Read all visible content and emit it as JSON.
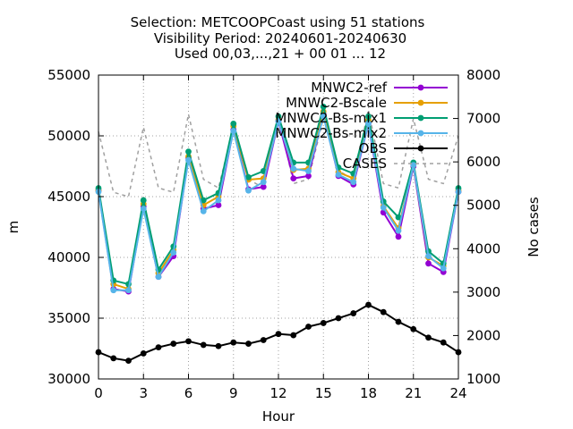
{
  "chart_data": {
    "type": "line",
    "title_lines": [
      "Selection: METCOOPCoast using    51 stations",
      "Visibility   Period: 20240601-20240630",
      "Used 00,03,...,21 + 00 01 ... 12"
    ],
    "xlabel": "Hour",
    "ylabel": "m",
    "y2label": "No cases",
    "xlim": [
      0,
      24
    ],
    "ylim": [
      30000,
      55000
    ],
    "y2lim": [
      1000,
      8000
    ],
    "xticks": [
      0,
      3,
      6,
      9,
      12,
      15,
      18,
      21,
      24
    ],
    "yticks": [
      30000,
      35000,
      40000,
      45000,
      50000,
      55000
    ],
    "y2ticks": [
      1000,
      2000,
      3000,
      4000,
      5000,
      6000,
      7000,
      8000
    ],
    "grid": true,
    "legend_position": "top-right",
    "x": [
      0,
      1,
      2,
      3,
      4,
      5,
      6,
      7,
      8,
      9,
      10,
      11,
      12,
      13,
      14,
      15,
      16,
      17,
      18,
      19,
      20,
      21,
      22,
      23,
      24
    ],
    "series": [
      {
        "name": "MNWC2-ref",
        "color": "#9400d3",
        "axis": "y1",
        "values": [
          45500,
          37400,
          37200,
          44200,
          38400,
          40100,
          48200,
          44000,
          44300,
          50500,
          45600,
          45800,
          51200,
          46500,
          46700,
          51800,
          46700,
          46000,
          51000,
          43700,
          41700,
          47500,
          39500,
          38800,
          45400
        ]
      },
      {
        "name": "MNWC2-Bscale",
        "color": "#e69f00",
        "axis": "y1",
        "values": [
          45500,
          37800,
          37400,
          44400,
          38700,
          40600,
          48300,
          44300,
          45000,
          50800,
          46400,
          46500,
          51300,
          47200,
          47300,
          52000,
          47000,
          46500,
          51300,
          44200,
          42400,
          47600,
          40000,
          39300,
          45500
        ]
      },
      {
        "name": "MNWC2-Bs-mix1",
        "color": "#009e73",
        "axis": "y1",
        "values": [
          45700,
          38100,
          37800,
          44700,
          39000,
          40900,
          48700,
          44700,
          45300,
          51000,
          46600,
          47100,
          51600,
          47800,
          47800,
          52400,
          47400,
          46900,
          51600,
          44600,
          43300,
          47800,
          40500,
          39500,
          45700
        ]
      },
      {
        "name": "MNWC2-Bs-mix2",
        "color": "#56b4e9",
        "axis": "y1",
        "values": [
          45400,
          37300,
          37300,
          44000,
          38400,
          40400,
          48000,
          43800,
          44700,
          50400,
          45500,
          46200,
          51200,
          47300,
          47100,
          51600,
          46800,
          46200,
          51000,
          44100,
          42200,
          47600,
          40100,
          39100,
          45400
        ]
      },
      {
        "name": "OBS",
        "color": "#000000",
        "axis": "y1",
        "values": [
          32200,
          31700,
          31500,
          32100,
          32600,
          32900,
          33100,
          32800,
          32700,
          33000,
          32900,
          33200,
          33700,
          33600,
          34300,
          34600,
          35000,
          35400,
          36100,
          35500,
          34700,
          34100,
          33400,
          33000,
          32200
        ]
      },
      {
        "name": "CASES",
        "color": "#a0a0a0",
        "axis": "y2",
        "values": [
          6700,
          5300,
          5200,
          6800,
          5400,
          5300,
          7100,
          5600,
          5400,
          6800,
          5600,
          5400,
          7100,
          5500,
          5600,
          7000,
          5800,
          5600,
          7200,
          5500,
          5400,
          7000,
          5600,
          5500,
          6600
        ]
      }
    ]
  }
}
